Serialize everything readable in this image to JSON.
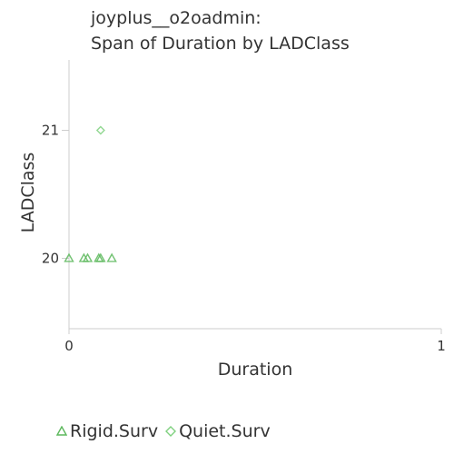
{
  "chart_data": {
    "type": "scatter",
    "title_line1": "joyplus__o2oadmin:",
    "title_line2": "Span of Duration by LADClass",
    "xlabel": "Duration",
    "ylabel": "LADClass",
    "xlim": [
      0,
      1
    ],
    "ylim": [
      19.45,
      21.55
    ],
    "x_ticks": [
      "0",
      "1"
    ],
    "y_ticks": [
      "20",
      "21"
    ],
    "grid": false,
    "legend_placement": "bottom-left",
    "series": [
      {
        "name": "Rigid.Surv",
        "marker": "triangle",
        "color": "#5cb85c",
        "points": [
          {
            "x": 0.0,
            "y": 20
          },
          {
            "x": 0.04,
            "y": 20
          },
          {
            "x": 0.05,
            "y": 20
          },
          {
            "x": 0.08,
            "y": 20
          },
          {
            "x": 0.085,
            "y": 20
          },
          {
            "x": 0.115,
            "y": 20
          }
        ]
      },
      {
        "name": "Quiet.Surv",
        "marker": "diamond",
        "color": "#7fd17f",
        "points": [
          {
            "x": 0.085,
            "y": 21
          }
        ]
      }
    ]
  }
}
